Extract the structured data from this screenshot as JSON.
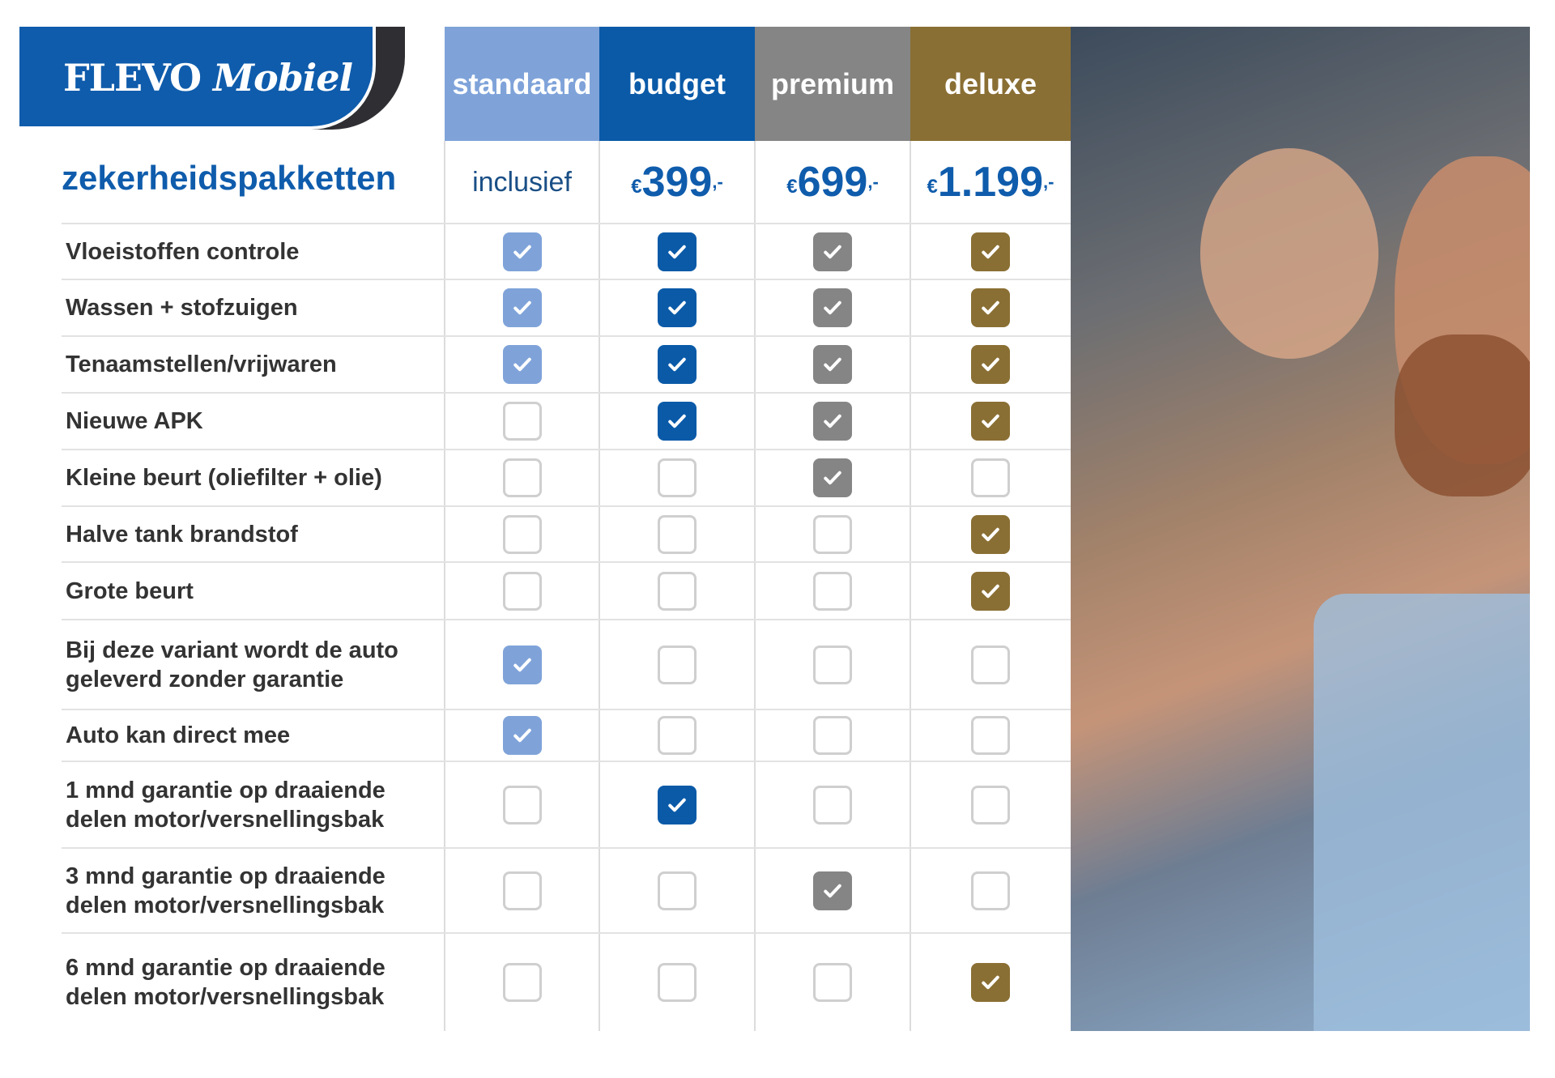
{
  "logo": {
    "brand": "FLEVO",
    "brand_italic": "Mobiel"
  },
  "title": "zekerheidspakketten",
  "packages": [
    {
      "name": "standaard",
      "price_text": "inclusief",
      "color": "#7fa3d9"
    },
    {
      "name": "budget",
      "currency": "€",
      "amount": "399",
      "suffix": ",-",
      "color": "#0a5aa8"
    },
    {
      "name": "premium",
      "currency": "€",
      "amount": "699",
      "suffix": ",-",
      "color": "#858585"
    },
    {
      "name": "deluxe",
      "currency": "€",
      "amount": "1.199",
      "suffix": ",-",
      "color": "#8a6f34"
    }
  ],
  "features": [
    {
      "label": "Vloeistoffen controle",
      "included": [
        true,
        true,
        true,
        true
      ]
    },
    {
      "label": "Wassen + stofzuigen",
      "included": [
        true,
        true,
        true,
        true
      ]
    },
    {
      "label": "Tenaamstellen/vrijwaren",
      "included": [
        true,
        true,
        true,
        true
      ]
    },
    {
      "label": "Nieuwe APK",
      "included": [
        false,
        true,
        true,
        true
      ]
    },
    {
      "label": "Kleine beurt (oliefilter + olie)",
      "included": [
        false,
        false,
        true,
        false
      ]
    },
    {
      "label": "Halve tank brandstof",
      "included": [
        false,
        false,
        false,
        true
      ]
    },
    {
      "label": "Grote beurt",
      "included": [
        false,
        false,
        false,
        true
      ]
    },
    {
      "label": "Bij deze variant wordt de auto geleverd zonder garantie",
      "included": [
        true,
        false,
        false,
        false
      ]
    },
    {
      "label": "Auto kan direct mee",
      "included": [
        true,
        false,
        false,
        false
      ]
    },
    {
      "label": "1 mnd garantie op draaiende delen motor/versnellingsbak",
      "included": [
        false,
        true,
        false,
        false
      ]
    },
    {
      "label": "3 mnd garantie op draaiende delen motor/versnellingsbak",
      "included": [
        false,
        false,
        true,
        false
      ]
    },
    {
      "label": "6 mnd garantie op draaiende delen motor/versnellingsbak",
      "included": [
        false,
        false,
        false,
        true
      ]
    }
  ],
  "photo": {
    "icon": "couple-in-car-photo"
  }
}
